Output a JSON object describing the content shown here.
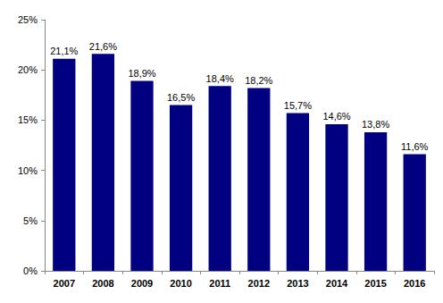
{
  "chart_data": {
    "type": "bar",
    "categories": [
      "2007",
      "2008",
      "2009",
      "2010",
      "2011",
      "2012",
      "2013",
      "2014",
      "2015",
      "2016"
    ],
    "values": [
      21.1,
      21.6,
      18.9,
      16.5,
      18.4,
      18.2,
      15.7,
      14.6,
      13.8,
      11.6
    ],
    "value_labels": [
      "21,1%",
      "21,6%",
      "18,9%",
      "16,5%",
      "18,4%",
      "18,2%",
      "15,7%",
      "14,6%",
      "13,8%",
      "11,6%"
    ],
    "color": "#000080",
    "ylim": [
      0,
      25
    ],
    "yticks": [
      {
        "value": 0,
        "label": "0%"
      },
      {
        "value": 5,
        "label": "5%"
      },
      {
        "value": 10,
        "label": "10%"
      },
      {
        "value": 15,
        "label": "15%"
      },
      {
        "value": 20,
        "label": "20%"
      },
      {
        "value": 25,
        "label": "25%"
      }
    ],
    "grid": false,
    "data_labels": true
  }
}
